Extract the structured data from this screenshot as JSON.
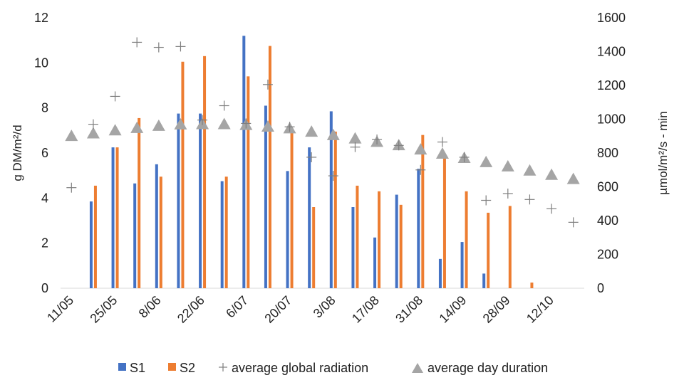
{
  "chart_data": {
    "type": "bar",
    "title": "",
    "ylabel_left": "g DM/m²/d",
    "ylabel_right": "µmol/m²/s - min",
    "ylim_left": [
      0,
      12
    ],
    "ylim_right": [
      0,
      1600
    ],
    "yticks_left": [
      "0",
      "2",
      "4",
      "6",
      "8",
      "10",
      "12"
    ],
    "yticks_right": [
      "0",
      "200",
      "400",
      "600",
      "800",
      "1000",
      "1200",
      "1400",
      "1600"
    ],
    "dates": [
      "11/05",
      "18/05",
      "25/05",
      "1/06",
      "8/06",
      "15/06",
      "22/06",
      "29/06",
      "6/07",
      "13/07",
      "20/07",
      "27/07",
      "3/08",
      "10/08",
      "17/08",
      "24/08",
      "31/08",
      "7/09",
      "14/09",
      "21/09",
      "28/09",
      "5/10",
      "12/10",
      "19/10"
    ],
    "xtick_labels": [
      "11/05",
      "25/05",
      "8/06",
      "22/06",
      "6/07",
      "20/07",
      "3/08",
      "17/08",
      "31/08",
      "14/09",
      "28/09",
      "12/10"
    ],
    "series": [
      {
        "name": "S1",
        "kind": "bar",
        "axis": "left",
        "color": "#4472C4",
        "values": [
          null,
          3.85,
          6.25,
          4.65,
          5.5,
          7.75,
          7.75,
          4.75,
          11.2,
          8.1,
          5.2,
          6.25,
          7.85,
          3.6,
          2.25,
          4.15,
          5.3,
          1.3,
          2.05,
          0.65,
          null,
          null,
          null,
          null
        ]
      },
      {
        "name": "S2",
        "kind": "bar",
        "axis": "left",
        "color": "#ED7D31",
        "values": [
          null,
          4.55,
          6.25,
          7.55,
          4.95,
          10.05,
          10.3,
          4.95,
          9.4,
          10.75,
          7.1,
          3.6,
          6.95,
          4.55,
          4.3,
          3.7,
          6.8,
          5.9,
          4.3,
          3.35,
          3.65,
          0.25,
          null,
          null
        ]
      },
      {
        "name": "average global radiation",
        "kind": "marker",
        "marker": "plus",
        "axis": "right",
        "color": "#7f7f7f",
        "values": [
          595,
          970,
          1135,
          1455,
          1425,
          1430,
          995,
          1080,
          975,
          1205,
          955,
          775,
          665,
          835,
          880,
          845,
          700,
          865,
          775,
          520,
          560,
          525,
          470,
          390
        ]
      },
      {
        "name": "average day duration",
        "kind": "marker",
        "marker": "triangle",
        "axis": "right",
        "color": "#a5a5a5",
        "values": [
          905,
          920,
          938,
          952,
          965,
          973,
          975,
          975,
          970,
          960,
          950,
          930,
          910,
          890,
          870,
          850,
          825,
          800,
          775,
          750,
          725,
          700,
          675,
          650
        ]
      }
    ],
    "legend_position": "bottom",
    "grid": false
  }
}
